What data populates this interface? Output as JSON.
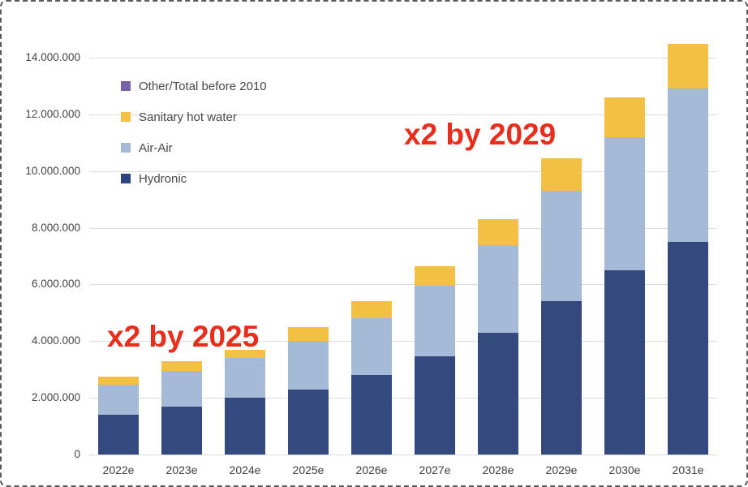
{
  "frame": {
    "background": "#ffffff",
    "border_color": "#5a5a5a",
    "border_style": "dashed"
  },
  "chart_data": {
    "type": "bar",
    "stacked": true,
    "title": "",
    "xlabel": "",
    "ylabel": "",
    "categories": [
      "2022e",
      "2023e",
      "2024e",
      "2025e",
      "2026e",
      "2027e",
      "2028e",
      "2029e",
      "2030e",
      "2031e"
    ],
    "series": [
      {
        "name": "Hydronic",
        "color": "#344a7f",
        "values": [
          1400000,
          1700000,
          2000000,
          2300000,
          2800000,
          3450000,
          4300000,
          5400000,
          6500000,
          7500000
        ]
      },
      {
        "name": "Air-Air",
        "color": "#a4bad6",
        "values": [
          1050000,
          1250000,
          1400000,
          1700000,
          2000000,
          2500000,
          3100000,
          3900000,
          4700000,
          5400000
        ]
      },
      {
        "name": "Sanitary hot water",
        "color": "#f2c143",
        "values": [
          300000,
          350000,
          300000,
          500000,
          600000,
          700000,
          900000,
          1150000,
          1400000,
          1600000
        ]
      },
      {
        "name": "Other/Total before 2010",
        "color": "#7963a8",
        "values": [
          0,
          0,
          0,
          0,
          0,
          0,
          0,
          0,
          0,
          0
        ]
      }
    ],
    "totals": [
      2750000,
      3300000,
      3700000,
      4500000,
      5400000,
      6650000,
      8300000,
      10450000,
      12600000,
      14500000
    ],
    "ylim": [
      0,
      14000000
    ],
    "ytick_step": 2000000,
    "ytick_labels": [
      "0",
      "2.000.000",
      "4.000.000",
      "6.000.000",
      "8.000.000",
      "10.000.000",
      "12.000.000",
      "14.000.000"
    ],
    "grid": true,
    "legend_position": "top-left-inside"
  },
  "legend": {
    "items": [
      {
        "label": "Other/Total before 2010",
        "color": "#7963a8"
      },
      {
        "label": "Sanitary hot water",
        "color": "#f2c143"
      },
      {
        "label": "Air-Air",
        "color": "#a4bad6"
      },
      {
        "label": "Hydronic",
        "color": "#2e4480"
      }
    ]
  },
  "annotations": [
    {
      "text": "x2 by 2025",
      "color": "#ea2c1b"
    },
    {
      "text": "x2 by 2029",
      "color": "#ea2c1b"
    }
  ]
}
